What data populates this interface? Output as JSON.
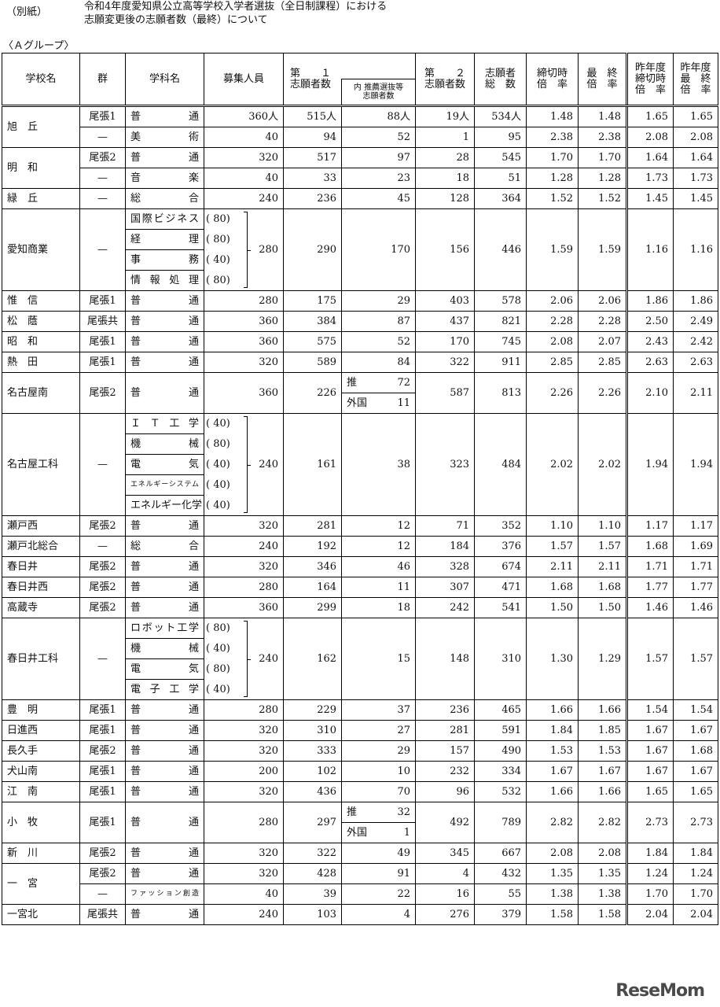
{
  "header": {
    "note": "（別紙）",
    "title_lines": [
      "令和4年度愛知県公立高等学校入学者選抜（全日制課程）における",
      "志願変更後の志願者数（最終）について"
    ],
    "group_label": "〈Ａグループ〉"
  },
  "table": {
    "headers": {
      "name": "学校名",
      "group": "群",
      "dept": "学科名",
      "capacity": "募集人員",
      "first": "第　　１\n志願者数",
      "rec": "内 推薦選抜等\n志願者数",
      "second": "第　　２\n志願者数",
      "total": "志願者\n総　数",
      "cutoff": "締切時\n倍　率",
      "final": "最　終\n倍　率",
      "prev_cutoff": "昨年度\n締切時\n倍　率",
      "prev_final": "昨年度\n最　終\n倍　率"
    },
    "schools": [
      {
        "name": "旭　丘",
        "lines": [
          {
            "group": "尾張1",
            "dept": "普通",
            "cap": "360人",
            "first": "515人",
            "rec": "88人",
            "second": "19人",
            "total": "534人",
            "cut": "1.48",
            "fin": "1.48",
            "pcut": "1.65",
            "pfin": "1.65"
          },
          {
            "group": "—",
            "dept": "美術",
            "cap": "40",
            "first": "94",
            "rec": "52",
            "second": "1",
            "total": "95",
            "cut": "2.38",
            "fin": "2.38",
            "pcut": "2.08",
            "pfin": "2.08"
          }
        ]
      },
      {
        "name": "明　和",
        "lines": [
          {
            "group": "尾張2",
            "dept": "普通",
            "cap": "320",
            "first": "517",
            "rec": "97",
            "second": "28",
            "total": "545",
            "cut": "1.70",
            "fin": "1.70",
            "pcut": "1.64",
            "pfin": "1.64"
          },
          {
            "group": "—",
            "dept": "音楽",
            "cap": "40",
            "first": "33",
            "rec": "23",
            "second": "18",
            "total": "51",
            "cut": "1.28",
            "fin": "1.28",
            "pcut": "1.73",
            "pfin": "1.73"
          }
        ]
      },
      {
        "name": "緑　丘",
        "lines": [
          {
            "group": "—",
            "dept": "総合",
            "cap": "240",
            "first": "236",
            "rec": "45",
            "second": "128",
            "total": "364",
            "cut": "1.52",
            "fin": "1.52",
            "pcut": "1.45",
            "pfin": "1.45"
          }
        ]
      },
      {
        "name": "愛知商業",
        "lines": [
          {
            "group": "—",
            "depts": [
              {
                "name": "国際ビジネス",
                "cap": "( 80)"
              },
              {
                "name": "経理",
                "cap": "( 80)"
              },
              {
                "name": "事務",
                "cap": "( 40)"
              },
              {
                "name": "情報処理",
                "cap": "( 80)"
              }
            ],
            "cap": "280",
            "first": "290",
            "rec": "170",
            "second": "156",
            "total": "446",
            "cut": "1.59",
            "fin": "1.59",
            "pcut": "1.16",
            "pfin": "1.16"
          }
        ]
      },
      {
        "name": "惟　信",
        "lines": [
          {
            "group": "尾張1",
            "dept": "普通",
            "cap": "280",
            "first": "175",
            "rec": "29",
            "second": "403",
            "total": "578",
            "cut": "2.06",
            "fin": "2.06",
            "pcut": "1.86",
            "pfin": "1.86"
          }
        ]
      },
      {
        "name": "松　蔭",
        "lines": [
          {
            "group": "尾張共",
            "dept": "普通",
            "cap": "360",
            "first": "384",
            "rec": "87",
            "second": "437",
            "total": "821",
            "cut": "2.28",
            "fin": "2.28",
            "pcut": "2.50",
            "pfin": "2.49"
          }
        ]
      },
      {
        "name": "昭　和",
        "lines": [
          {
            "group": "尾張1",
            "dept": "普通",
            "cap": "360",
            "first": "575",
            "rec": "52",
            "second": "170",
            "total": "745",
            "cut": "2.08",
            "fin": "2.07",
            "pcut": "2.43",
            "pfin": "2.42"
          }
        ]
      },
      {
        "name": "熱　田",
        "lines": [
          {
            "group": "尾張1",
            "dept": "普通",
            "cap": "320",
            "first": "589",
            "rec": "84",
            "second": "322",
            "total": "911",
            "cut": "2.85",
            "fin": "2.85",
            "pcut": "2.63",
            "pfin": "2.63"
          }
        ]
      },
      {
        "name": "名古屋南",
        "lines": [
          {
            "group": "尾張2",
            "dept": "普通",
            "cap": "360",
            "first": "226",
            "rec": [
              {
                "label": "推",
                "value": "72"
              },
              {
                "label": "外国",
                "value": "11"
              }
            ],
            "second": "587",
            "total": "813",
            "cut": "2.26",
            "fin": "2.26",
            "pcut": "2.10",
            "pfin": "2.11"
          }
        ]
      },
      {
        "name": "名古屋工科",
        "lines": [
          {
            "group": "—",
            "depts": [
              {
                "name": "ＩＴ工学",
                "cap": "( 40)"
              },
              {
                "name": "機械",
                "cap": "( 80)"
              },
              {
                "name": "電気",
                "cap": "( 40)"
              },
              {
                "name": "エネルギーシステム",
                "cap": "( 40)"
              },
              {
                "name": "エネルギー化学",
                "cap": "( 40)"
              }
            ],
            "cap": "240",
            "first": "161",
            "rec": "38",
            "second": "323",
            "total": "484",
            "cut": "2.02",
            "fin": "2.02",
            "pcut": "1.94",
            "pfin": "1.94"
          }
        ]
      },
      {
        "name": "瀬戸西",
        "lines": [
          {
            "group": "尾張2",
            "dept": "普通",
            "cap": "320",
            "first": "281",
            "rec": "12",
            "second": "71",
            "total": "352",
            "cut": "1.10",
            "fin": "1.10",
            "pcut": "1.17",
            "pfin": "1.17"
          }
        ]
      },
      {
        "name": "瀬戸北総合",
        "lines": [
          {
            "group": "—",
            "dept": "総合",
            "cap": "240",
            "first": "192",
            "rec": "12",
            "second": "184",
            "total": "376",
            "cut": "1.57",
            "fin": "1.57",
            "pcut": "1.68",
            "pfin": "1.69"
          }
        ]
      },
      {
        "name": "春日井",
        "lines": [
          {
            "group": "尾張2",
            "dept": "普通",
            "cap": "320",
            "first": "346",
            "rec": "46",
            "second": "328",
            "total": "674",
            "cut": "2.11",
            "fin": "2.11",
            "pcut": "1.71",
            "pfin": "1.71"
          }
        ]
      },
      {
        "name": "春日井西",
        "lines": [
          {
            "group": "尾張2",
            "dept": "普通",
            "cap": "280",
            "first": "164",
            "rec": "11",
            "second": "307",
            "total": "471",
            "cut": "1.68",
            "fin": "1.68",
            "pcut": "1.77",
            "pfin": "1.77"
          }
        ]
      },
      {
        "name": "高蔵寺",
        "lines": [
          {
            "group": "尾張2",
            "dept": "普通",
            "cap": "360",
            "first": "299",
            "rec": "18",
            "second": "242",
            "total": "541",
            "cut": "1.50",
            "fin": "1.50",
            "pcut": "1.46",
            "pfin": "1.46"
          }
        ]
      },
      {
        "name": "春日井工科",
        "lines": [
          {
            "group": "—",
            "depts": [
              {
                "name": "ロボット工学",
                "cap": "( 80)"
              },
              {
                "name": "機械",
                "cap": "( 40)"
              },
              {
                "name": "電気",
                "cap": "( 80)"
              },
              {
                "name": "電子工学",
                "cap": "( 40)"
              }
            ],
            "cap": "240",
            "first": "162",
            "rec": "15",
            "second": "148",
            "total": "310",
            "cut": "1.30",
            "fin": "1.29",
            "pcut": "1.57",
            "pfin": "1.57"
          }
        ]
      },
      {
        "name": "豊　明",
        "lines": [
          {
            "group": "尾張1",
            "dept": "普通",
            "cap": "280",
            "first": "229",
            "rec": "37",
            "second": "236",
            "total": "465",
            "cut": "1.66",
            "fin": "1.66",
            "pcut": "1.54",
            "pfin": "1.54"
          }
        ]
      },
      {
        "name": "日進西",
        "lines": [
          {
            "group": "尾張1",
            "dept": "普通",
            "cap": "320",
            "first": "310",
            "rec": "27",
            "second": "281",
            "total": "591",
            "cut": "1.84",
            "fin": "1.85",
            "pcut": "1.67",
            "pfin": "1.67"
          }
        ]
      },
      {
        "name": "長久手",
        "lines": [
          {
            "group": "尾張2",
            "dept": "普通",
            "cap": "320",
            "first": "333",
            "rec": "29",
            "second": "157",
            "total": "490",
            "cut": "1.53",
            "fin": "1.53",
            "pcut": "1.67",
            "pfin": "1.68"
          }
        ]
      },
      {
        "name": "犬山南",
        "lines": [
          {
            "group": "尾張1",
            "dept": "普通",
            "cap": "200",
            "first": "102",
            "rec": "10",
            "second": "232",
            "total": "334",
            "cut": "1.67",
            "fin": "1.67",
            "pcut": "1.67",
            "pfin": "1.67"
          }
        ]
      },
      {
        "name": "江　南",
        "lines": [
          {
            "group": "尾張1",
            "dept": "普通",
            "cap": "320",
            "first": "436",
            "rec": "70",
            "second": "96",
            "total": "532",
            "cut": "1.66",
            "fin": "1.66",
            "pcut": "1.65",
            "pfin": "1.65"
          }
        ]
      },
      {
        "name": "小　牧",
        "lines": [
          {
            "group": "尾張1",
            "dept": "普通",
            "cap": "280",
            "first": "297",
            "rec": [
              {
                "label": "推",
                "value": "32"
              },
              {
                "label": "外国",
                "value": "1"
              }
            ],
            "second": "492",
            "total": "789",
            "cut": "2.82",
            "fin": "2.82",
            "pcut": "2.73",
            "pfin": "2.73"
          }
        ]
      },
      {
        "name": "新　川",
        "lines": [
          {
            "group": "尾張2",
            "dept": "普通",
            "cap": "320",
            "first": "322",
            "rec": "49",
            "second": "345",
            "total": "667",
            "cut": "2.08",
            "fin": "2.08",
            "pcut": "1.84",
            "pfin": "1.84"
          }
        ]
      },
      {
        "name": "一　宮",
        "lines": [
          {
            "group": "尾張2",
            "dept": "普通",
            "cap": "320",
            "first": "428",
            "rec": "91",
            "second": "4",
            "total": "432",
            "cut": "1.35",
            "fin": "1.35",
            "pcut": "1.24",
            "pfin": "1.24"
          },
          {
            "group": "—",
            "dept": "ファッション創造",
            "cap": "40",
            "first": "39",
            "rec": "22",
            "second": "16",
            "total": "55",
            "cut": "1.38",
            "fin": "1.38",
            "pcut": "1.70",
            "pfin": "1.70"
          }
        ]
      },
      {
        "name": "一宮北",
        "lines": [
          {
            "group": "尾張共",
            "dept": "普通",
            "cap": "240",
            "first": "103",
            "rec": "4",
            "second": "276",
            "total": "379",
            "cut": "1.58",
            "fin": "1.58",
            "pcut": "2.04",
            "pfin": "2.04"
          }
        ]
      }
    ]
  },
  "watermark": "ReseMom"
}
